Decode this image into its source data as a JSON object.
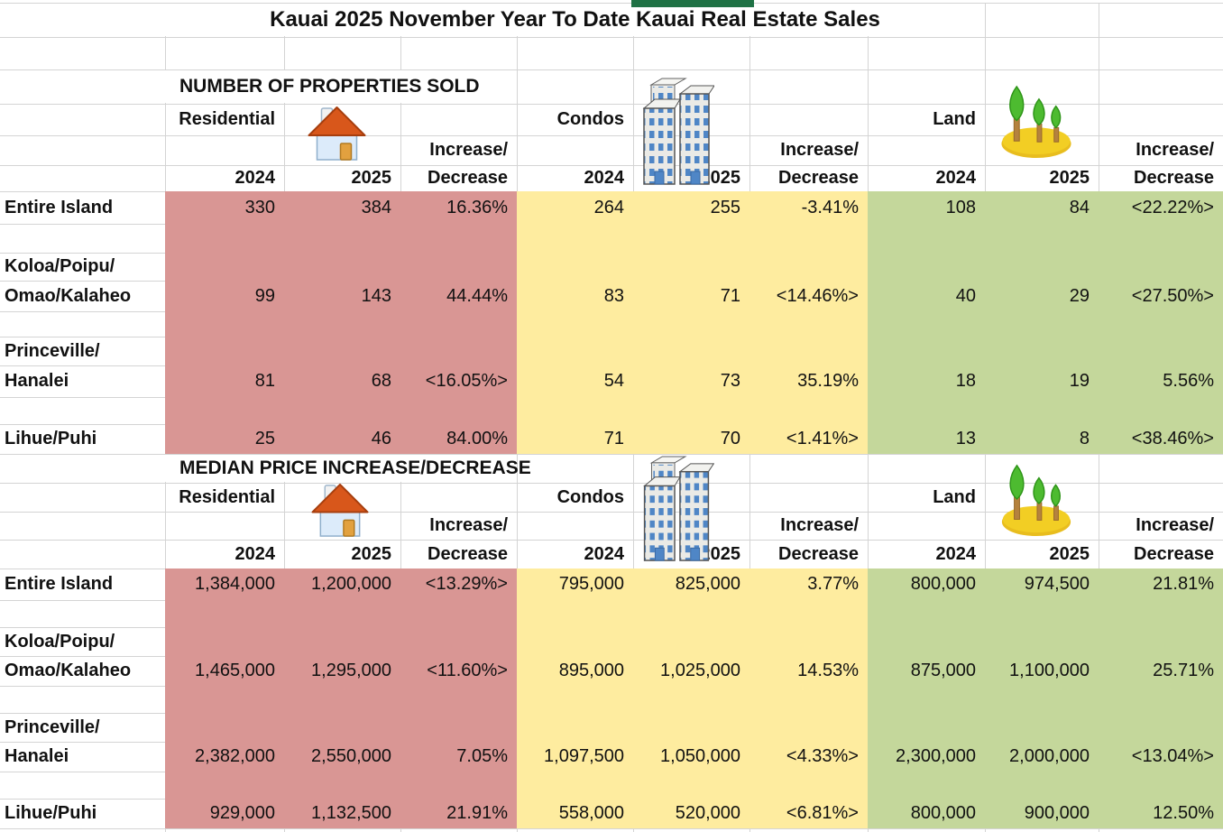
{
  "title": "Kauai 2025 November Year To Date Kauai Real Estate Sales",
  "colors": {
    "residential_fill": "#D99694",
    "condos_fill": "#FEEC9F",
    "land_fill": "#C4D79B",
    "gridline": "#D4D4D4",
    "top_bar": "#1F7245"
  },
  "column_groups": [
    "Residential",
    "Condos",
    "Land"
  ],
  "year_headers": [
    "2024",
    "2025"
  ],
  "change_header_line1": "Increase/",
  "change_header_line2": "Decrease",
  "icons": [
    "house-icon",
    "condo-buildings-icon",
    "land-trees-icon"
  ],
  "sections": [
    {
      "header": "NUMBER OF PROPERTIES SOLD",
      "rows": [
        {
          "label_lines": [
            "Entire Island"
          ],
          "residential": [
            "330",
            "384",
            "16.36%"
          ],
          "condos": [
            "264",
            "255",
            "-3.41%"
          ],
          "land": [
            "108",
            "84",
            "<22.22%>"
          ]
        },
        {
          "label_lines": [
            "Koloa/Poipu/",
            "Omao/Kalaheo"
          ],
          "residential": [
            "99",
            "143",
            "44.44%"
          ],
          "condos": [
            "83",
            "71",
            "<14.46%>"
          ],
          "land": [
            "40",
            "29",
            "<27.50%>"
          ]
        },
        {
          "label_lines": [
            "Princeville/",
            "Hanalei"
          ],
          "residential": [
            "81",
            "68",
            "<16.05%>"
          ],
          "condos": [
            "54",
            "73",
            "35.19%"
          ],
          "land": [
            "18",
            "19",
            "5.56%"
          ]
        },
        {
          "label_lines": [
            "Lihue/Puhi"
          ],
          "residential": [
            "25",
            "46",
            "84.00%"
          ],
          "condos": [
            "71",
            "70",
            "<1.41%>"
          ],
          "land": [
            "13",
            "8",
            "<38.46%>"
          ]
        }
      ]
    },
    {
      "header": "MEDIAN PRICE INCREASE/DECREASE",
      "rows": [
        {
          "label_lines": [
            "Entire Island"
          ],
          "residential": [
            "1,384,000",
            "1,200,000",
            "<13.29%>"
          ],
          "condos": [
            "795,000",
            "825,000",
            "3.77%"
          ],
          "land": [
            "800,000",
            "974,500",
            "21.81%"
          ]
        },
        {
          "label_lines": [
            "Koloa/Poipu/",
            "Omao/Kalaheo"
          ],
          "residential": [
            "1,465,000",
            "1,295,000",
            "<11.60%>"
          ],
          "condos": [
            "895,000",
            "1,025,000",
            "14.53%"
          ],
          "land": [
            "875,000",
            "1,100,000",
            "25.71%"
          ]
        },
        {
          "label_lines": [
            "Princeville/",
            "Hanalei"
          ],
          "residential": [
            "2,382,000",
            "2,550,000",
            "7.05%"
          ],
          "condos": [
            "1,097,500",
            "1,050,000",
            "<4.33%>"
          ],
          "land": [
            "2,300,000",
            "2,000,000",
            "<13.04%>"
          ]
        },
        {
          "label_lines": [
            "Lihue/Puhi"
          ],
          "residential": [
            "929,000",
            "1,132,500",
            "21.91%"
          ],
          "condos": [
            "558,000",
            "520,000",
            "<6.81%>"
          ],
          "land": [
            "800,000",
            "900,000",
            "12.50%"
          ]
        }
      ]
    }
  ]
}
